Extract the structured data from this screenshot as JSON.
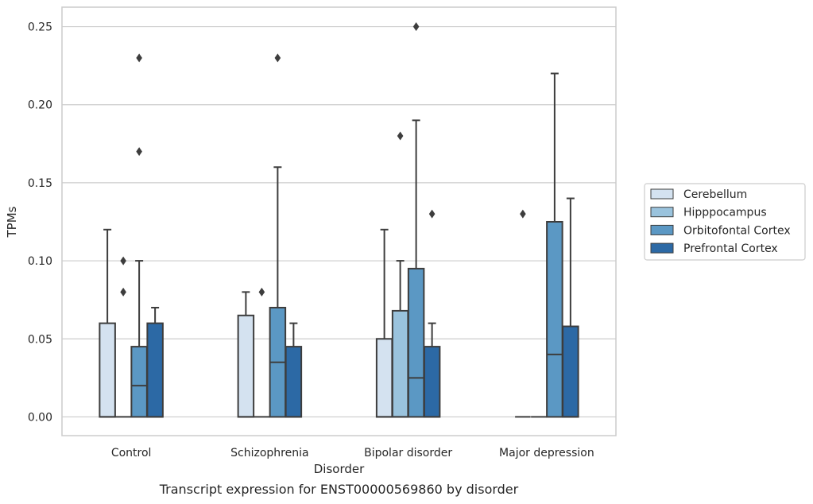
{
  "caption": "Transcript expression for ENST00000569860 by disorder",
  "chart_data": {
    "type": "box",
    "title": "",
    "xlabel": "Disorder",
    "ylabel": "TPMs",
    "ylim": [
      -0.012,
      0.2625
    ],
    "yticks": [
      "0.00",
      "0.05",
      "0.10",
      "0.15",
      "0.20",
      "0.25"
    ],
    "ytick_values": [
      0,
      0.05,
      0.1,
      0.15,
      0.2,
      0.25
    ],
    "grid": "horizontal",
    "legend_position": "right",
    "categories": [
      "Control",
      "Schizophrenia",
      "Bipolar disorder",
      "Major depression"
    ],
    "series": [
      {
        "name": "Cerebellum",
        "color": "#d4e2f0",
        "boxes": [
          {
            "low": 0,
            "q1": 0,
            "median": 0,
            "q3": 0.06,
            "high": 0.12,
            "outliers": []
          },
          {
            "low": 0,
            "q1": 0,
            "median": 0,
            "q3": 0.065,
            "high": 0.08,
            "outliers": []
          },
          {
            "low": 0,
            "q1": 0,
            "median": 0,
            "q3": 0.05,
            "high": 0.12,
            "outliers": []
          },
          {
            "low": 0,
            "q1": 0,
            "median": 0,
            "q3": 0,
            "high": 0,
            "outliers": [
              0.13
            ]
          }
        ]
      },
      {
        "name": "Hipppocampus",
        "color": "#9ac3dd",
        "boxes": [
          {
            "low": 0,
            "q1": 0,
            "median": 0,
            "q3": 0,
            "high": 0,
            "outliers": [
              0.08,
              0.1
            ]
          },
          {
            "low": 0,
            "q1": 0,
            "median": 0,
            "q3": 0,
            "high": 0,
            "outliers": [
              0.08
            ]
          },
          {
            "low": 0,
            "q1": 0,
            "median": 0,
            "q3": 0.068,
            "high": 0.1,
            "outliers": [
              0.18
            ]
          },
          {
            "low": 0,
            "q1": 0,
            "median": 0,
            "q3": 0,
            "high": 0,
            "outliers": []
          }
        ]
      },
      {
        "name": "Orbitofontal Cortex",
        "color": "#5b98c4",
        "boxes": [
          {
            "low": 0,
            "q1": 0,
            "median": 0.02,
            "q3": 0.045,
            "high": 0.1,
            "outliers": [
              0.17,
              0.23
            ]
          },
          {
            "low": 0,
            "q1": 0,
            "median": 0.035,
            "q3": 0.07,
            "high": 0.16,
            "outliers": [
              0.23
            ]
          },
          {
            "low": 0,
            "q1": 0,
            "median": 0.025,
            "q3": 0.095,
            "high": 0.19,
            "outliers": [
              0.25
            ]
          },
          {
            "low": 0,
            "q1": 0,
            "median": 0.04,
            "q3": 0.125,
            "high": 0.22,
            "outliers": []
          }
        ]
      },
      {
        "name": "Prefrontal Cortex",
        "color": "#2c69a5",
        "boxes": [
          {
            "low": 0,
            "q1": 0,
            "median": 0,
            "q3": 0.06,
            "high": 0.07,
            "outliers": []
          },
          {
            "low": 0,
            "q1": 0,
            "median": 0,
            "q3": 0.045,
            "high": 0.06,
            "outliers": []
          },
          {
            "low": 0,
            "q1": 0,
            "median": 0,
            "q3": 0.045,
            "high": 0.06,
            "outliers": [
              0.13
            ]
          },
          {
            "low": 0,
            "q1": 0,
            "median": 0,
            "q3": 0.058,
            "high": 0.14,
            "outliers": []
          }
        ]
      }
    ]
  }
}
